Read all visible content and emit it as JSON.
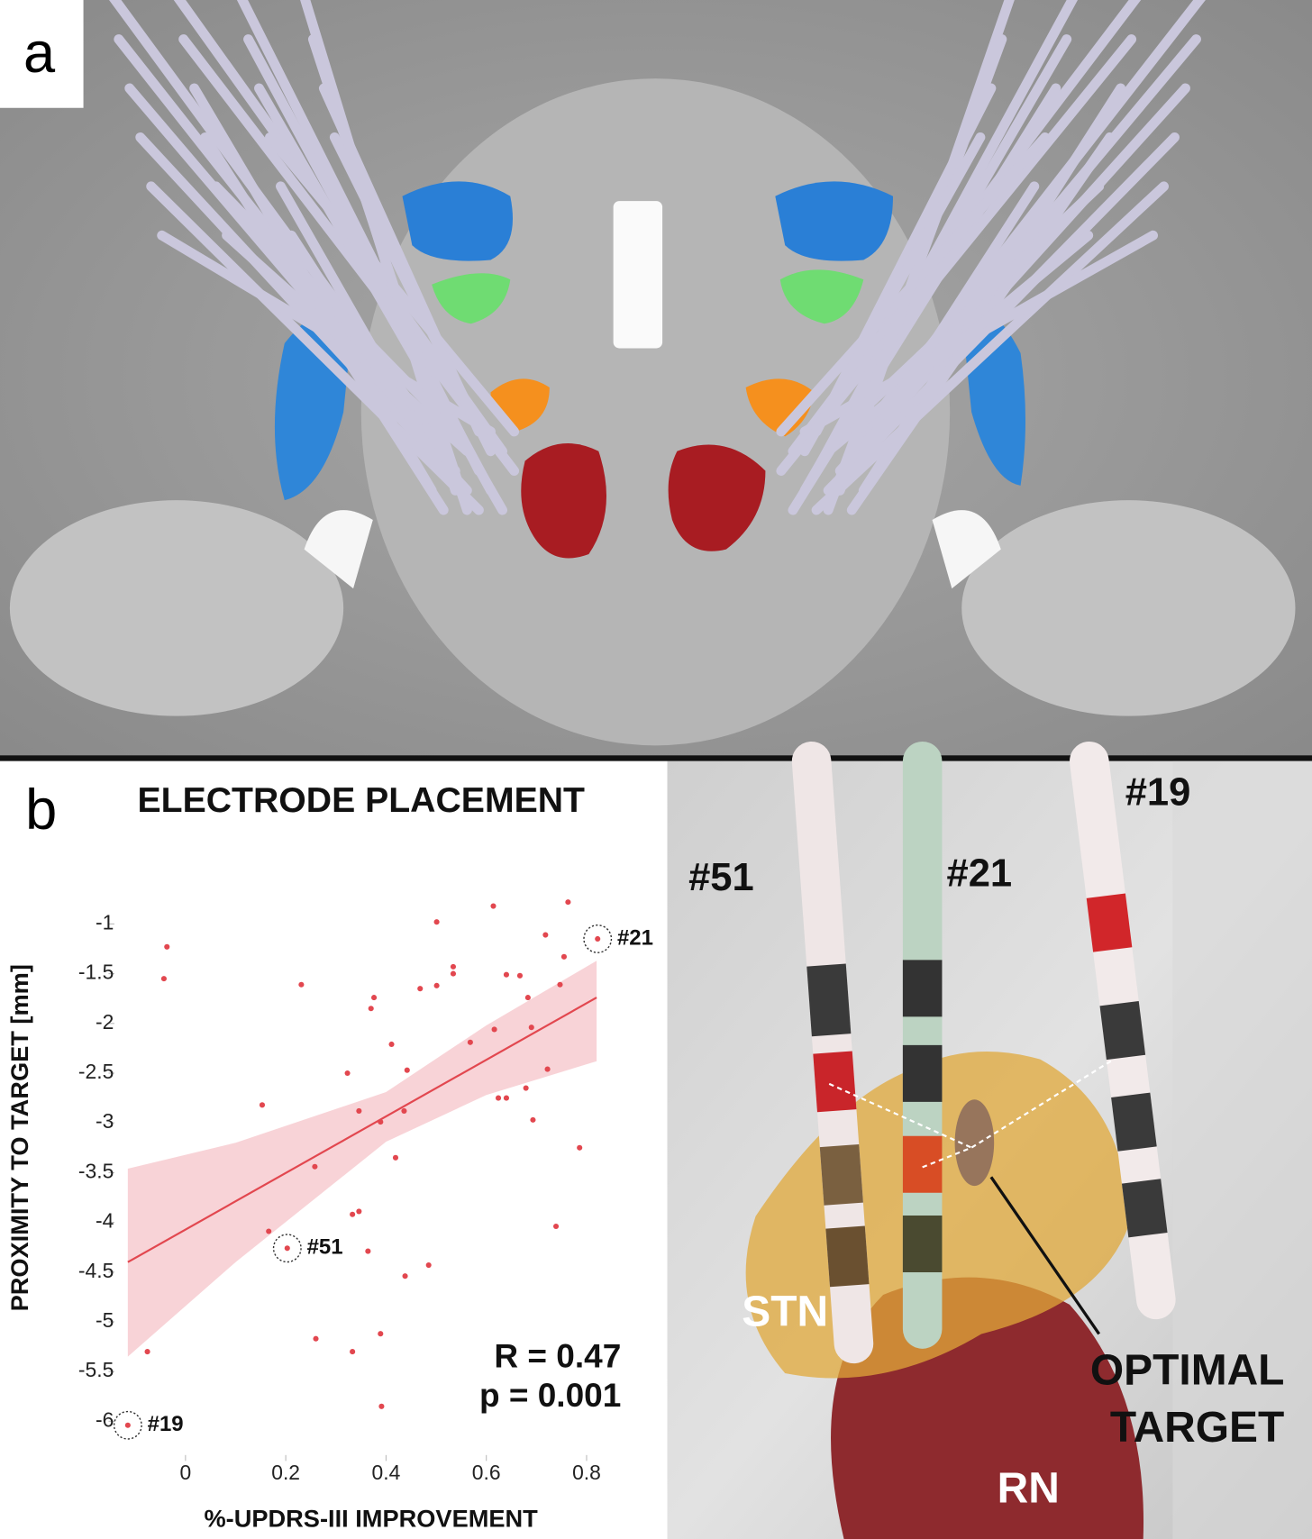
{
  "panel_a": {
    "label": "a"
  },
  "panel_b": {
    "label": "b"
  },
  "chart_data": {
    "type": "scatter",
    "title": "ELECTRODE PLACEMENT",
    "x_label": "%-UPDRS-III IMPROVEMENT",
    "y_label": "PROXIMITY TO TARGET [mm]",
    "color": "#e2474f",
    "xlim": [
      -0.13,
      0.83
    ],
    "ylim": [
      -6.3,
      -0.6
    ],
    "xticks": [
      0,
      0.2,
      0.4,
      0.6,
      0.8
    ],
    "yticks": [
      -1,
      -1.5,
      -2,
      -2.5,
      -3,
      -3.5,
      -4,
      -4.5,
      -5,
      -5.5,
      -6
    ],
    "x": [
      0.614,
      0.763,
      0.501,
      0.822,
      -0.037,
      -0.043,
      0.231,
      0.534,
      0.534,
      0.501,
      0.468,
      0.64,
      0.667,
      0.755,
      0.718,
      0.376,
      0.37,
      0.683,
      0.616,
      0.69,
      0.411,
      0.568,
      0.747,
      0.323,
      0.442,
      0.722,
      0.624,
      0.64,
      0.679,
      0.346,
      0.436,
      0.153,
      0.389,
      0.693,
      0.786,
      0.419,
      0.258,
      0.346,
      0.333,
      0.739,
      0.166,
      0.203,
      0.364,
      0.438,
      0.485,
      0.26,
      0.389,
      0.333,
      -0.076,
      0.391,
      -0.115
    ],
    "values": [
      -0.82,
      -0.78,
      -0.98,
      -1.15,
      -1.23,
      -1.55,
      -1.61,
      -1.43,
      -1.5,
      -1.62,
      -1.65,
      -1.51,
      -1.52,
      -1.33,
      -1.11,
      -1.74,
      -1.85,
      -1.74,
      -2.06,
      -2.04,
      -2.21,
      -2.19,
      -1.61,
      -2.5,
      -2.47,
      -2.46,
      -2.75,
      -2.75,
      -2.65,
      -2.88,
      -2.88,
      -2.82,
      -2.99,
      -2.97,
      -3.25,
      -3.35,
      -3.44,
      -3.89,
      -3.92,
      -4.04,
      -4.09,
      -4.26,
      -4.29,
      -4.54,
      -4.43,
      -5.17,
      -5.12,
      -5.3,
      -5.3,
      -5.85,
      -6.04
    ],
    "regression": {
      "color": "#e2474f",
      "x": [
        -0.115,
        0.82
      ],
      "y": [
        -4.4,
        -1.74
      ]
    },
    "confidence_band": {
      "color": "#f3b5bc",
      "x": [
        -0.115,
        0.1,
        0.4,
        0.6,
        0.82
      ],
      "upper": [
        -3.46,
        -3.2,
        -2.69,
        -2.02,
        -1.37
      ],
      "lower": [
        -5.35,
        -4.4,
        -3.19,
        -2.72,
        -2.38
      ]
    },
    "annotations": [
      {
        "text": "#21",
        "x": 0.822,
        "y": -1.15
      },
      {
        "text": "#51",
        "x": 0.203,
        "y": -4.26
      },
      {
        "text": "#19",
        "x": -0.115,
        "y": -6.04
      }
    ],
    "stats": [
      "R = 0.47",
      "p = 0.001"
    ]
  },
  "rendering": {
    "labels": [
      "#51",
      "#21",
      "#19",
      "STN",
      "OPTIMAL",
      "TARGET",
      "RN"
    ]
  }
}
